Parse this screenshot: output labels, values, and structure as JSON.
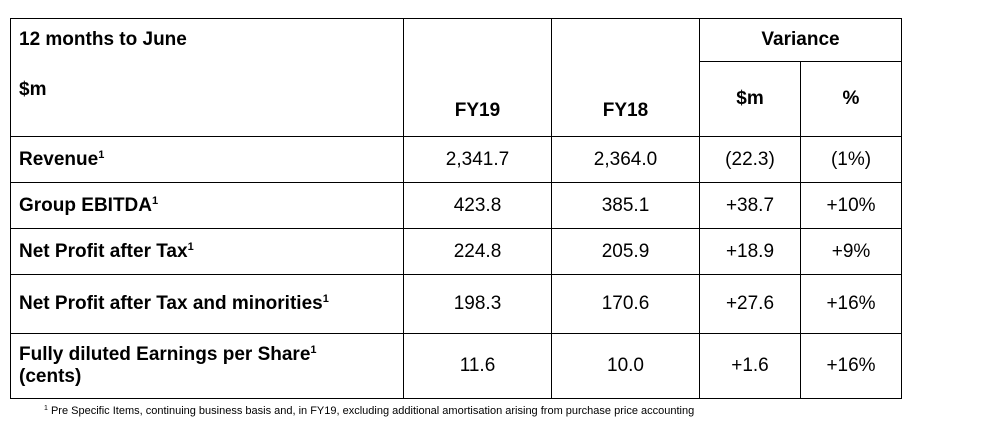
{
  "header": {
    "period_label": "12 months to June",
    "unit_label": "$m",
    "fy19": "FY19",
    "fy18": "FY18",
    "variance": "Variance",
    "variance_dollars": "$m",
    "variance_pct": "%"
  },
  "rows": [
    {
      "label": "Revenue",
      "sup": "1",
      "fy19": "2,341.7",
      "fy18": "2,364.0",
      "var_m": "(22.3)",
      "var_pct": "(1%)"
    },
    {
      "label": "Group EBITDA",
      "sup": "1",
      "fy19": "423.8",
      "fy18": "385.1",
      "var_m": "+38.7",
      "var_pct": "+10%"
    },
    {
      "label": "Net Profit after Tax",
      "sup": "1",
      "fy19": "224.8",
      "fy18": "205.9",
      "var_m": "+18.9",
      "var_pct": "+9%"
    },
    {
      "label": "Net Profit after Tax and minorities",
      "sup": "1",
      "fy19": "198.3",
      "fy18": "170.6",
      "var_m": "+27.6",
      "var_pct": "+16%"
    },
    {
      "label": "Fully diluted Earnings per Share",
      "sup": "1",
      "label_line2": "(cents)",
      "fy19": "11.6",
      "fy18": "10.0",
      "var_m": "+1.6",
      "var_pct": "+16%"
    }
  ],
  "footnote": {
    "marker": "1",
    "text": "Pre Specific Items, continuing business basis and, in FY19, excluding additional amortisation arising from purchase price accounting"
  }
}
